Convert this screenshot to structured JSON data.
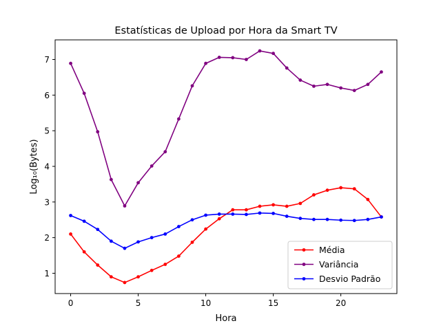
{
  "chart_data": {
    "type": "line",
    "title": "Estatísticas de Upload por Hora da Smart TV",
    "xlabel": "Hora",
    "ylabel": "Log₁₀(Bytes)",
    "xlim": [
      -1.15,
      24.15
    ],
    "ylim": [
      0.43,
      7.55
    ],
    "xticks": [
      0,
      5,
      10,
      15,
      20
    ],
    "yticks": [
      1,
      2,
      3,
      4,
      5,
      6,
      7
    ],
    "grid": false,
    "legend_position": "lower right",
    "x": [
      0,
      1,
      2,
      3,
      4,
      5,
      6,
      7,
      8,
      9,
      10,
      11,
      12,
      13,
      14,
      15,
      16,
      17,
      18,
      19,
      20,
      21,
      22,
      23
    ],
    "series": [
      {
        "name": "Média",
        "color": "#ff0000",
        "values": [
          2.1,
          1.6,
          1.23,
          0.9,
          0.74,
          0.9,
          1.08,
          1.25,
          1.48,
          1.87,
          2.24,
          2.53,
          2.78,
          2.78,
          2.88,
          2.92,
          2.88,
          2.96,
          3.2,
          3.33,
          3.4,
          3.37,
          3.07,
          2.58
        ]
      },
      {
        "name": "Variância",
        "color": "#800080",
        "values": [
          6.89,
          6.05,
          4.97,
          3.63,
          2.89,
          3.54,
          4.01,
          4.41,
          5.33,
          6.26,
          6.89,
          7.06,
          7.05,
          7.0,
          7.24,
          7.17,
          6.76,
          6.42,
          6.25,
          6.3,
          6.2,
          6.13,
          6.3,
          6.65
        ]
      },
      {
        "name": "Desvio Padrão",
        "color": "#0000ff",
        "values": [
          2.62,
          2.46,
          2.23,
          1.9,
          1.7,
          1.88,
          2.0,
          2.1,
          2.31,
          2.5,
          2.63,
          2.66,
          2.66,
          2.65,
          2.69,
          2.68,
          2.6,
          2.54,
          2.51,
          2.51,
          2.49,
          2.48,
          2.51,
          2.58
        ]
      }
    ]
  }
}
